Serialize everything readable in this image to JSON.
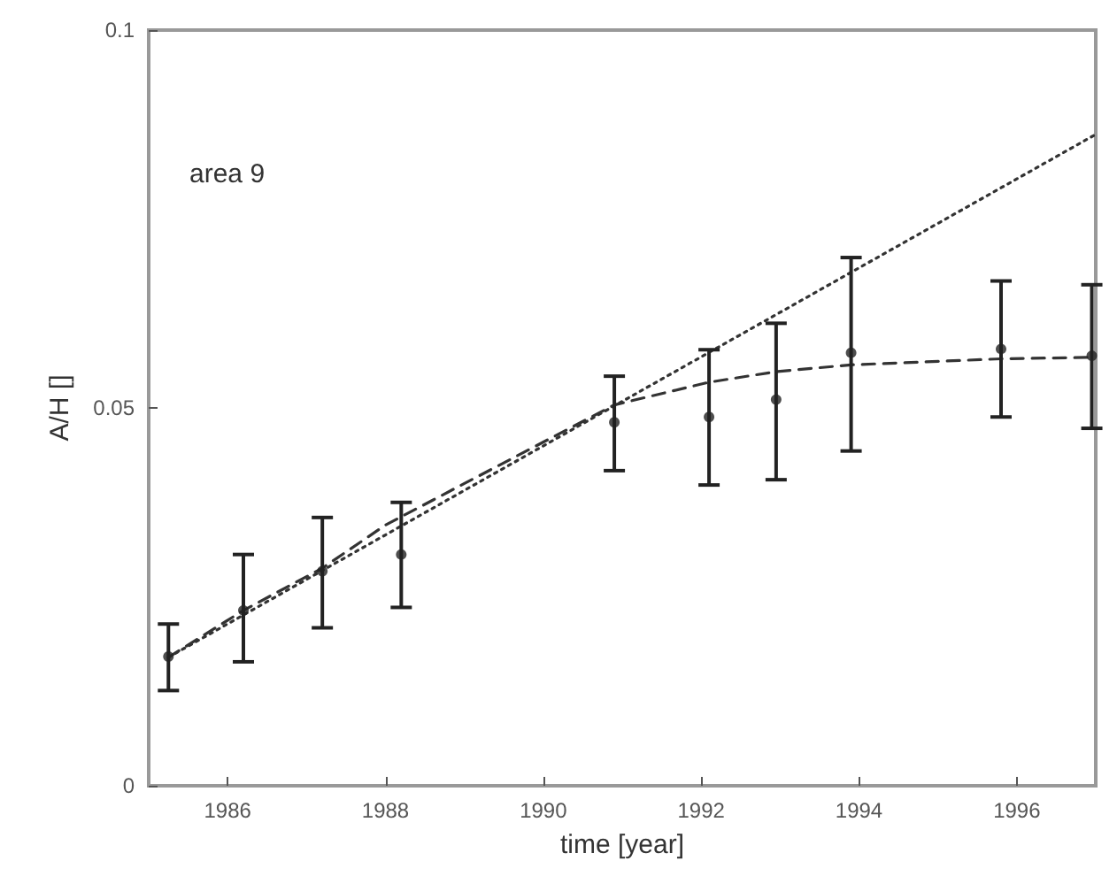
{
  "chart_data": {
    "type": "scatter",
    "xlabel": "time [year]",
    "ylabel": "A/H []",
    "annotations": [
      "area 9"
    ],
    "xlim": [
      1985,
      1997
    ],
    "xticks": [
      1986,
      1988,
      1990,
      1992,
      1994,
      1996
    ],
    "ylim": [
      0,
      0.1
    ],
    "yticks": [
      0,
      0.05,
      0.1
    ],
    "grid": false,
    "series": [
      {
        "color": "#222222",
        "marker": "circle",
        "x": [
          1985.25,
          1986.2,
          1987.2,
          1988.2,
          1990.9,
          1992.1,
          1992.95,
          1993.9,
          1995.8,
          1996.95
        ],
        "values": [
          0.0171,
          0.0232,
          0.0284,
          0.0306,
          0.0481,
          0.0488,
          0.0511,
          0.0573,
          0.0578,
          0.0569
        ],
        "errors": [
          [
            0.0126,
            0.0214
          ],
          [
            0.0164,
            0.0306
          ],
          [
            0.0209,
            0.0355
          ],
          [
            0.0236,
            0.0375
          ],
          [
            0.0417,
            0.0542
          ],
          [
            0.0398,
            0.0577
          ],
          [
            0.0405,
            0.0612
          ],
          [
            0.0443,
            0.0699
          ],
          [
            0.0488,
            0.0668
          ],
          [
            0.0473,
            0.0663
          ]
        ]
      },
      {
        "type": "line",
        "color": "#333333",
        "marker": "none",
        "line_style": "dotted",
        "x": [
          1985.25,
          1997
        ],
        "values": [
          0.017,
          0.0862
        ]
      },
      {
        "type": "line",
        "color": "#333333",
        "marker": "none",
        "line_style": "dashed",
        "x": [
          1985.25,
          1986.2,
          1987.2,
          1988,
          1989,
          1990.9,
          1992.1,
          1992.95,
          1993.9,
          1995.8,
          1997
        ],
        "values": [
          0.017,
          0.0232,
          0.0288,
          0.0345,
          0.04,
          0.0504,
          0.0534,
          0.0548,
          0.0557,
          0.0565,
          0.0567
        ]
      }
    ]
  }
}
